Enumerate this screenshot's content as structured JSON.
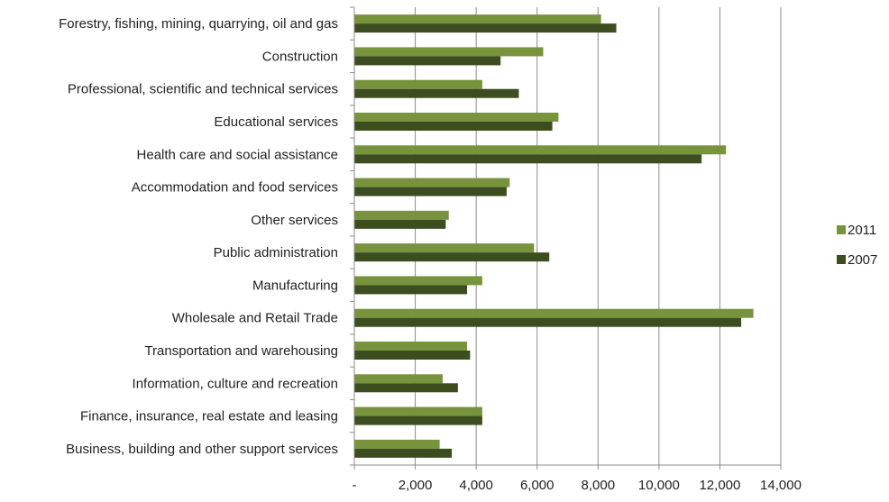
{
  "chart_data": {
    "type": "bar",
    "orientation": "horizontal",
    "title": "",
    "xlabel": "",
    "ylabel": "",
    "xlim": [
      0,
      14000
    ],
    "grid": "vertical",
    "legend_position": "right",
    "categories": [
      "Forestry, fishing, mining, quarrying, oil and gas",
      "Construction",
      "Professional, scientific and technical services",
      "Educational services",
      "Health care and social assistance",
      "Accommodation and food services",
      "Other services",
      "Public administration",
      "Manufacturing",
      "Wholesale and Retail Trade",
      "Transportation and warehousing",
      "Information, culture and recreation",
      "Finance, insurance, real estate and leasing",
      "Business, building and other support services"
    ],
    "x_ticks": [
      "-",
      "2,000",
      "4,000",
      "6,000",
      "8,000",
      "10,000",
      "12,000",
      "14,000"
    ],
    "series": [
      {
        "name": "2011",
        "color": "#77933c",
        "values": [
          8100,
          6200,
          4200,
          6700,
          12200,
          5100,
          3100,
          5900,
          4200,
          13100,
          3700,
          2900,
          4200,
          2800
        ]
      },
      {
        "name": "2007",
        "color": "#3c4d1f",
        "values": [
          8600,
          4800,
          5400,
          6500,
          11400,
          5000,
          3000,
          6400,
          3700,
          12700,
          3800,
          3400,
          4200,
          3200
        ]
      }
    ]
  }
}
